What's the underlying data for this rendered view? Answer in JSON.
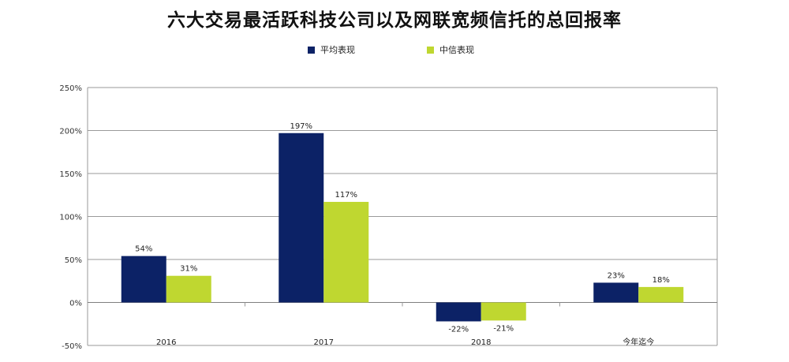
{
  "chart_data": {
    "type": "bar",
    "title": "六大交易最活跃科技公司以及网联宽频信托的总回报率",
    "categories": [
      "2016",
      "2017",
      "2018",
      "今年迄今"
    ],
    "series": [
      {
        "name": "平均表现",
        "values": [
          54,
          197,
          -22,
          23
        ],
        "labels": [
          "54%",
          "197%",
          "-22%",
          "23%"
        ],
        "color": "#0c2266"
      },
      {
        "name": "中信表现",
        "values": [
          31,
          117,
          -21,
          18
        ],
        "labels": [
          "31%",
          "117%",
          "-21%",
          "18%"
        ],
        "color": "#bfd730"
      }
    ],
    "yticks": [
      {
        "value": 250,
        "label": "250%"
      },
      {
        "value": 200,
        "label": "200%"
      },
      {
        "value": 150,
        "label": "150%"
      },
      {
        "value": 100,
        "label": "100%"
      },
      {
        "value": 50,
        "label": "50%"
      },
      {
        "value": 0,
        "label": "0%"
      },
      {
        "value": -50,
        "label": "-50%"
      }
    ],
    "ylim": [
      -50,
      250
    ],
    "grid": true,
    "legend_position": "top-center"
  }
}
